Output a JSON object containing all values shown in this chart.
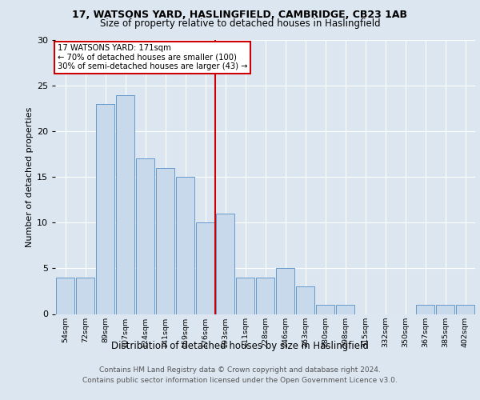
{
  "title1": "17, WATSONS YARD, HASLINGFIELD, CAMBRIDGE, CB23 1AB",
  "title2": "Size of property relative to detached houses in Haslingfield",
  "xlabel": "Distribution of detached houses by size in Haslingfield",
  "ylabel": "Number of detached properties",
  "categories": [
    "54sqm",
    "72sqm",
    "89sqm",
    "107sqm",
    "124sqm",
    "141sqm",
    "159sqm",
    "176sqm",
    "193sqm",
    "211sqm",
    "228sqm",
    "246sqm",
    "263sqm",
    "280sqm",
    "298sqm",
    "315sqm",
    "332sqm",
    "350sqm",
    "367sqm",
    "385sqm",
    "402sqm"
  ],
  "values": [
    4,
    4,
    23,
    24,
    17,
    16,
    15,
    10,
    11,
    4,
    4,
    5,
    3,
    1,
    1,
    0,
    0,
    0,
    1,
    1,
    1
  ],
  "bar_color": "#c9d9ec",
  "bar_edge_color": "#6699cc",
  "vline_x": 7.5,
  "vline_color": "#cc0000",
  "annotation_title": "17 WATSONS YARD: 171sqm",
  "annotation_line1": "← 70% of detached houses are smaller (100)",
  "annotation_line2": "30% of semi-detached houses are larger (43) →",
  "annotation_box_color": "#ffffff",
  "annotation_box_edge": "#cc0000",
  "footnote1": "Contains HM Land Registry data © Crown copyright and database right 2024.",
  "footnote2": "Contains public sector information licensed under the Open Government Licence v3.0.",
  "ylim": [
    0,
    30
  ],
  "yticks": [
    0,
    5,
    10,
    15,
    20,
    25,
    30
  ],
  "background_color": "#dce6f0",
  "plot_background": "#dce6f0"
}
